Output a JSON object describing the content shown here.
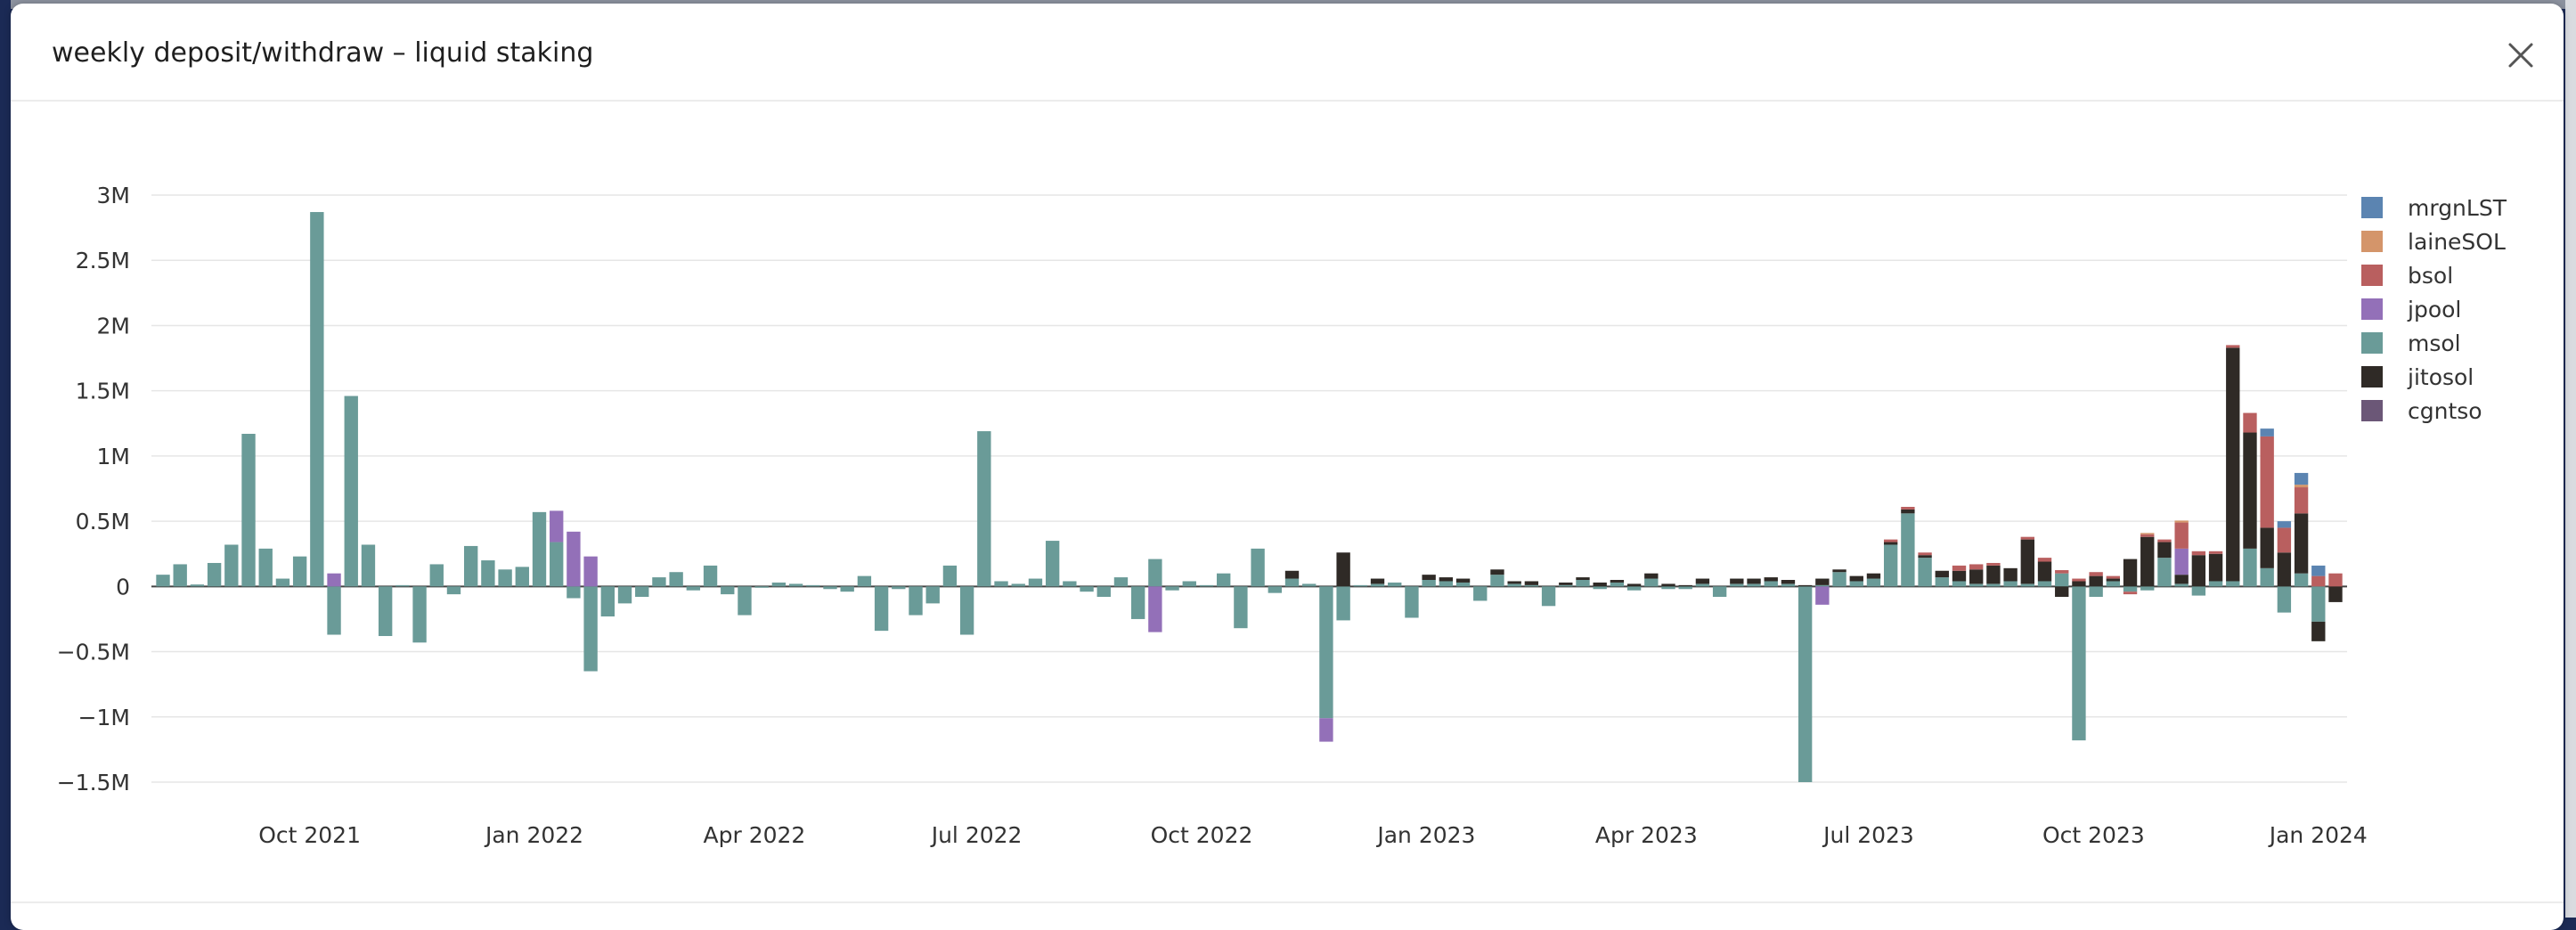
{
  "modal": {
    "title": "weekly deposit/withdraw – liquid staking",
    "close_icon": "close-icon"
  },
  "chart_data": {
    "type": "bar",
    "stacked": true,
    "title": "weekly deposit/withdraw – liquid staking",
    "xlabel": "",
    "ylabel": "",
    "ylim": [
      -1500000,
      3000000
    ],
    "yticks": [
      {
        "v": 3000000,
        "label": "3M"
      },
      {
        "v": 2500000,
        "label": "2.5M"
      },
      {
        "v": 2000000,
        "label": "2M"
      },
      {
        "v": 1500000,
        "label": "1.5M"
      },
      {
        "v": 1000000,
        "label": "1M"
      },
      {
        "v": 500000,
        "label": "0.5M"
      },
      {
        "v": 0,
        "label": "0"
      },
      {
        "v": -500000,
        "label": "−0.5M"
      },
      {
        "v": -1000000,
        "label": "−1M"
      },
      {
        "v": -1500000,
        "label": "−1.5M"
      }
    ],
    "xlim": [
      "2021-08-02",
      "2024-01-08"
    ],
    "xticks": [
      {
        "date": "2021-10-01",
        "label": "Oct 2021"
      },
      {
        "date": "2022-01-01",
        "label": "Jan 2022"
      },
      {
        "date": "2022-04-01",
        "label": "Apr 2022"
      },
      {
        "date": "2022-07-01",
        "label": "Jul 2022"
      },
      {
        "date": "2022-10-01",
        "label": "Oct 2022"
      },
      {
        "date": "2023-01-01",
        "label": "Jan 2023"
      },
      {
        "date": "2023-04-01",
        "label": "Apr 2023"
      },
      {
        "date": "2023-07-01",
        "label": "Jul 2023"
      },
      {
        "date": "2023-10-01",
        "label": "Oct 2023"
      },
      {
        "date": "2024-01-01",
        "label": "Jan 2024"
      }
    ],
    "grid": true,
    "legend_position": "top-right",
    "series": [
      {
        "name": "mrgnLST",
        "color": "#5b84b1",
        "values": {
          "2023-12-11": 60000,
          "2023-12-18": 50000,
          "2023-12-25": 90000,
          "2024-01-01": 80000
        }
      },
      {
        "name": "laineSOL",
        "color": "#d4956a",
        "values": {
          "2023-10-23": 10000,
          "2023-11-06": 15000,
          "2023-12-25": 20000
        }
      },
      {
        "name": "bsol",
        "color": "#b95f5f",
        "values": {
          "2023-07-10": 20000,
          "2023-07-17": 20000,
          "2023-07-24": 20000,
          "2023-08-07": 40000,
          "2023-08-14": 40000,
          "2023-08-21": 20000,
          "2023-09-04": 20000,
          "2023-09-11": 30000,
          "2023-09-18": 25000,
          "2023-09-25": 20000,
          "2023-10-02": 30000,
          "2023-10-09": 20000,
          "2023-10-16": -20000,
          "2023-10-23": 20000,
          "2023-10-30": 20000,
          "2023-11-06": 200000,
          "2023-11-13": 30000,
          "2023-11-20": 20000,
          "2023-11-27": 20000,
          "2023-12-04": 150000,
          "2023-12-11": 700000,
          "2023-12-18": 190000,
          "2023-12-25": 200000,
          "2024-01-01": 80000,
          "2024-01-08": 100000
        }
      },
      {
        "name": "jpool",
        "color": "#9370b8",
        "values": {
          "2021-10-11": 100000,
          "2022-01-10": 240000,
          "2022-01-17": 420000,
          "2022-01-24": 230000,
          "2022-09-12": -350000,
          "2022-11-21": -180000,
          "2023-06-12": -140000,
          "2023-11-06": 200000
        }
      },
      {
        "name": "msol",
        "color": "#6a9b98",
        "values": {
          "2021-08-02": 90000,
          "2021-08-09": 170000,
          "2021-08-16": 15000,
          "2021-08-23": 180000,
          "2021-08-30": 320000,
          "2021-09-06": 1170000,
          "2021-09-13": 290000,
          "2021-09-20": 60000,
          "2021-09-27": 230000,
          "2021-10-04": 2870000,
          "2021-10-11": -370000,
          "2021-10-18": 1460000,
          "2021-10-25": 320000,
          "2021-11-01": -380000,
          "2021-11-08": 10000,
          "2021-11-15": -430000,
          "2021-11-22": 170000,
          "2021-11-29": -60000,
          "2021-12-06": 310000,
          "2021-12-13": 200000,
          "2021-12-20": 130000,
          "2021-12-27": 150000,
          "2022-01-03": 570000,
          "2022-01-10": 340000,
          "2022-01-17": -90000,
          "2022-01-24": -650000,
          "2022-01-31": -230000,
          "2022-02-07": -130000,
          "2022-02-14": -80000,
          "2022-02-21": 70000,
          "2022-02-28": 110000,
          "2022-03-07": -30000,
          "2022-03-14": 160000,
          "2022-03-21": -60000,
          "2022-03-28": -220000,
          "2022-04-04": -10000,
          "2022-04-11": 30000,
          "2022-04-18": 20000,
          "2022-04-25": 10000,
          "2022-05-02": -20000,
          "2022-05-09": -40000,
          "2022-05-16": 80000,
          "2022-05-23": -340000,
          "2022-05-30": -20000,
          "2022-06-06": -220000,
          "2022-06-13": -130000,
          "2022-06-20": 160000,
          "2022-06-27": -370000,
          "2022-07-04": 1190000,
          "2022-07-11": 40000,
          "2022-07-18": 20000,
          "2022-07-25": 60000,
          "2022-08-01": 350000,
          "2022-08-08": 40000,
          "2022-08-15": -40000,
          "2022-08-22": -80000,
          "2022-08-29": 70000,
          "2022-09-05": -250000,
          "2022-09-12": 210000,
          "2022-09-19": -30000,
          "2022-09-26": 40000,
          "2022-10-03": 10000,
          "2022-10-10": 100000,
          "2022-10-17": -320000,
          "2022-10-24": 290000,
          "2022-10-31": -50000,
          "2022-11-07": 60000,
          "2022-11-14": 20000,
          "2022-11-21": -1010000,
          "2022-11-28": -260000,
          "2022-12-05": 10000,
          "2022-12-12": 20000,
          "2022-12-19": 30000,
          "2022-12-26": -240000,
          "2023-01-02": 50000,
          "2023-01-09": 40000,
          "2023-01-16": 30000,
          "2023-01-23": -110000,
          "2023-01-30": 90000,
          "2023-02-06": 20000,
          "2023-02-13": 10000,
          "2023-02-20": -150000,
          "2023-02-27": 10000,
          "2023-03-06": 50000,
          "2023-03-13": -20000,
          "2023-03-20": 30000,
          "2023-03-27": -30000,
          "2023-04-03": 60000,
          "2023-04-10": -20000,
          "2023-04-17": -20000,
          "2023-04-24": 20000,
          "2023-05-01": -80000,
          "2023-05-08": 20000,
          "2023-05-15": 20000,
          "2023-05-22": 40000,
          "2023-05-29": 20000,
          "2023-06-05": -1500000,
          "2023-06-12": 10000,
          "2023-06-19": 110000,
          "2023-06-26": 40000,
          "2023-07-03": 60000,
          "2023-07-10": 320000,
          "2023-07-17": 560000,
          "2023-07-24": 220000,
          "2023-07-31": 70000,
          "2023-08-07": 40000,
          "2023-08-14": 20000,
          "2023-08-21": 20000,
          "2023-08-28": 40000,
          "2023-09-04": 20000,
          "2023-09-11": 40000,
          "2023-09-18": 100000,
          "2023-09-25": -1180000,
          "2023-10-02": -80000,
          "2023-10-09": 40000,
          "2023-10-16": -40000,
          "2023-10-23": -30000,
          "2023-10-30": 220000,
          "2023-11-06": 20000,
          "2023-11-13": -70000,
          "2023-11-20": 40000,
          "2023-11-27": 40000,
          "2023-12-04": 290000,
          "2023-12-11": 140000,
          "2023-12-18": -200000,
          "2023-12-25": 100000,
          "2024-01-01": -270000
        }
      },
      {
        "name": "jitosol",
        "color": "#2f2a26",
        "values": {
          "2022-11-07": 60000,
          "2022-11-28": 260000,
          "2022-12-12": 40000,
          "2023-01-02": 40000,
          "2023-01-09": 30000,
          "2023-01-16": 30000,
          "2023-01-30": 40000,
          "2023-02-06": 20000,
          "2023-02-13": 30000,
          "2023-02-27": 20000,
          "2023-03-06": 20000,
          "2023-03-13": 30000,
          "2023-03-20": 20000,
          "2023-03-27": 20000,
          "2023-04-03": 40000,
          "2023-04-10": 20000,
          "2023-04-17": 10000,
          "2023-04-24": 40000,
          "2023-05-08": 40000,
          "2023-05-15": 40000,
          "2023-05-22": 30000,
          "2023-05-29": 30000,
          "2023-06-05": 10000,
          "2023-06-12": 50000,
          "2023-06-19": 20000,
          "2023-06-26": 40000,
          "2023-07-03": 40000,
          "2023-07-10": 20000,
          "2023-07-17": 30000,
          "2023-07-24": 20000,
          "2023-07-31": 50000,
          "2023-08-07": 80000,
          "2023-08-14": 110000,
          "2023-08-21": 140000,
          "2023-08-28": 100000,
          "2023-09-04": 340000,
          "2023-09-11": 150000,
          "2023-09-18": -80000,
          "2023-09-25": 40000,
          "2023-10-02": 80000,
          "2023-10-09": 20000,
          "2023-10-16": 210000,
          "2023-10-23": 380000,
          "2023-10-30": 120000,
          "2023-11-06": 70000,
          "2023-11-13": 240000,
          "2023-11-20": 210000,
          "2023-11-27": 1790000,
          "2023-12-04": 890000,
          "2023-12-11": 310000,
          "2023-12-18": 260000,
          "2023-12-25": 460000,
          "2024-01-01": -150000,
          "2024-01-08": -120000
        }
      },
      {
        "name": "cgntso",
        "color": "#6b5777",
        "values": {}
      }
    ]
  }
}
